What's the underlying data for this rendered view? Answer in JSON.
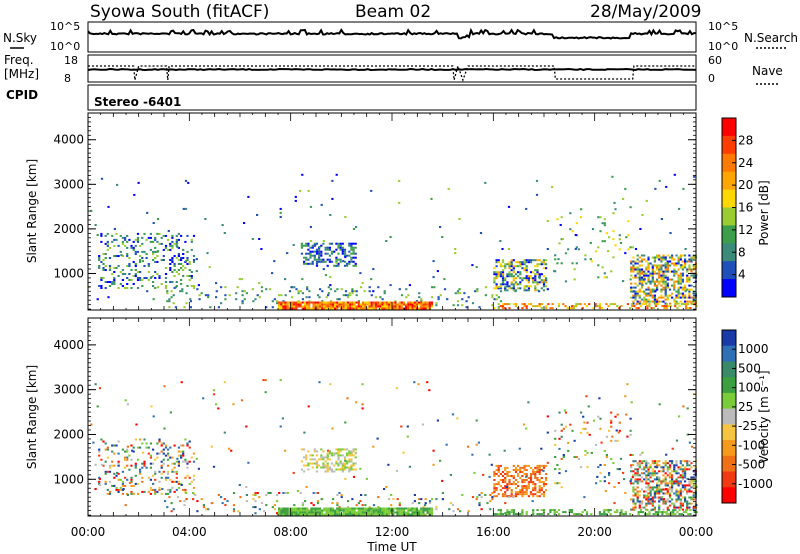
{
  "header": {
    "station": "Syowa South (fitACF)",
    "beam": "Beam 02",
    "date": "28/May/2009"
  },
  "top_panels": {
    "nsky_label": "N.Sky",
    "nsky_ticks": [
      "10^5",
      "10^0"
    ],
    "nsearch_label": "N.Search",
    "nsearch_ticks": [
      "10^5",
      "10^0"
    ],
    "freq_label_line1": "Freq.",
    "freq_label_line2": "[MHz]",
    "freq_ticks": [
      "18",
      "8"
    ],
    "nave_label": "Nave",
    "nave_ticks": [
      "60",
      "0"
    ],
    "cpid_label": "CPID",
    "cpid_text": "Stereo  -6401"
  },
  "chart_data": [
    {
      "type": "heatmap",
      "name": "power-panel",
      "ylabel": "Slant Range [km]",
      "ylim": [
        180,
        4600
      ],
      "yticks": [
        1000,
        2000,
        3000,
        4000
      ],
      "xlim": [
        0,
        24
      ],
      "colorbar": {
        "label": "Power [dB]",
        "tick_labels": [
          "4",
          "8",
          "12",
          "16",
          "20",
          "24",
          "28"
        ],
        "colors": [
          "#0000ff",
          "#1f4fb8",
          "#3b8a7a",
          "#3c9e4a",
          "#9acd32",
          "#ffd700",
          "#ffa500",
          "#ff7a00",
          "#ff3d00",
          "#ff0000"
        ]
      }
    },
    {
      "type": "heatmap",
      "name": "velocity-panel",
      "ylabel": "Slant Range [km]",
      "ylim": [
        180,
        4600
      ],
      "yticks": [
        1000,
        2000,
        3000,
        4000
      ],
      "xlim": [
        0,
        24
      ],
      "colorbar": {
        "label": "Velocity [m s⁻¹]",
        "tick_labels": [
          "1000",
          "500",
          "100",
          "25",
          "-25",
          "-100",
          "-500",
          "-1000"
        ],
        "colors": [
          "#1a3aa8",
          "#2f6fb5",
          "#3a8a6a",
          "#3ca040",
          "#7acc3a",
          "#bbbbbb",
          "#f5c542",
          "#f59a1a",
          "#f07018",
          "#f23a12",
          "#ff0000"
        ]
      }
    }
  ],
  "x_axis": {
    "label": "Time UT",
    "tick_labels": [
      "00:00",
      "04:00",
      "08:00",
      "12:00",
      "16:00",
      "20:00",
      "00:00"
    ]
  }
}
